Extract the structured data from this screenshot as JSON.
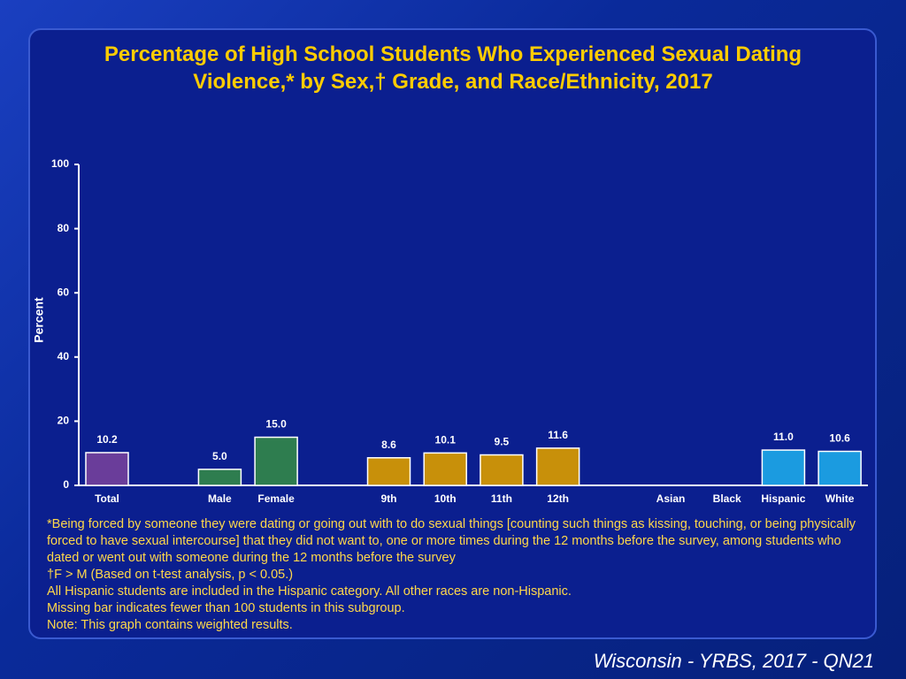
{
  "chart_data": {
    "type": "bar",
    "title": "Percentage of High School Students Who Experienced Sexual Dating Violence,* by Sex,† Grade, and Race/Ethnicity, 2017",
    "ylabel": "Percent",
    "categories": [
      "Total",
      null,
      "Male",
      "Female",
      null,
      "9th",
      "10th",
      "11th",
      "12th",
      null,
      "Asian",
      "Black",
      "Hispanic",
      "White"
    ],
    "values": [
      10.2,
      null,
      5.0,
      15.0,
      null,
      8.6,
      10.1,
      9.5,
      11.6,
      null,
      null,
      null,
      11.0,
      10.6
    ],
    "value_labels": [
      "10.2",
      null,
      "5.0",
      "15.0",
      null,
      "8.6",
      "10.1",
      "9.5",
      "11.6",
      null,
      null,
      null,
      "11.0",
      "10.6"
    ],
    "colors": [
      "#6a3d9a",
      null,
      "#2e7d4f",
      "#2e7d4f",
      null,
      "#c8900a",
      "#c8900a",
      "#c8900a",
      "#c8900a",
      null,
      null,
      null,
      "#1b9be0",
      "#1b9be0"
    ],
    "ylim": [
      0,
      100
    ],
    "yticks": [
      0,
      20,
      40,
      60,
      80,
      100
    ],
    "footnotes": [
      "*Being forced by someone they were dating or going out with to do sexual things [counting such things as kissing, touching, or being physically forced to have sexual intercourse] that they did not want to, one or more times during the 12 months before the survey, among students who dated or went out with someone during the 12 months before the survey",
      "†F > M (Based on t-test analysis, p < 0.05.)",
      "All Hispanic students are included in the Hispanic category.  All other races are non-Hispanic.",
      "Missing bar indicates fewer than 100 students in this subgroup.",
      "Note: This graph contains weighted results."
    ],
    "source": "Wisconsin - YRBS, 2017 - QN21"
  }
}
